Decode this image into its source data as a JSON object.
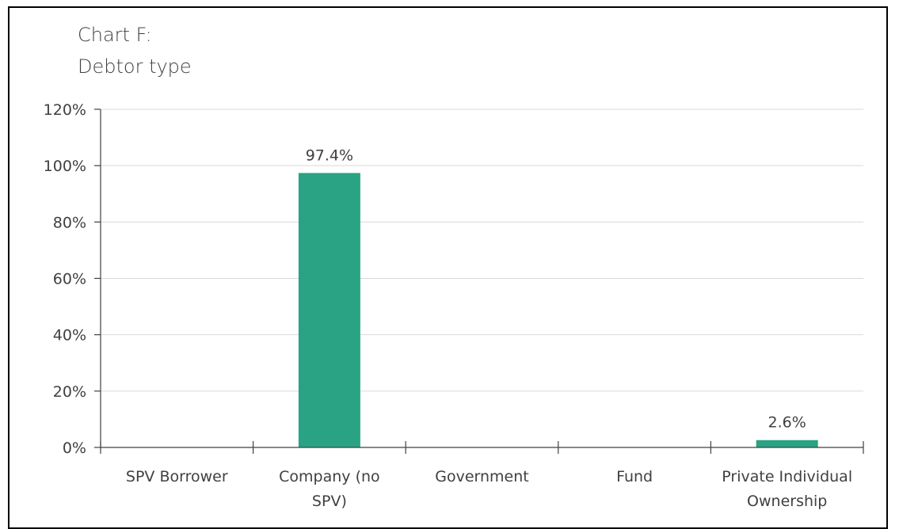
{
  "chart_data": {
    "type": "bar",
    "title": "Chart F:",
    "subtitle": "Debtor type",
    "categories": [
      [
        "SPV Borrower"
      ],
      [
        "Company (no",
        "SPV)"
      ],
      [
        "Government"
      ],
      [
        "Fund"
      ],
      [
        "Private Individual",
        "Ownership"
      ]
    ],
    "values": [
      0,
      97.4,
      0,
      0,
      2.6
    ],
    "data_labels": [
      "",
      "97.4%",
      "",
      "",
      "2.6%"
    ],
    "ylim": [
      0,
      120
    ],
    "yticks": [
      0,
      20,
      40,
      60,
      80,
      100,
      120
    ],
    "ytick_labels": [
      "0%",
      "20%",
      "40%",
      "60%",
      "80%",
      "100%",
      "120%"
    ],
    "grid": true,
    "colors": {
      "bar": "#2aa384",
      "grid": "#d9d9d9",
      "axis": "#404040",
      "text": "#404040",
      "frame": "#000000"
    }
  }
}
